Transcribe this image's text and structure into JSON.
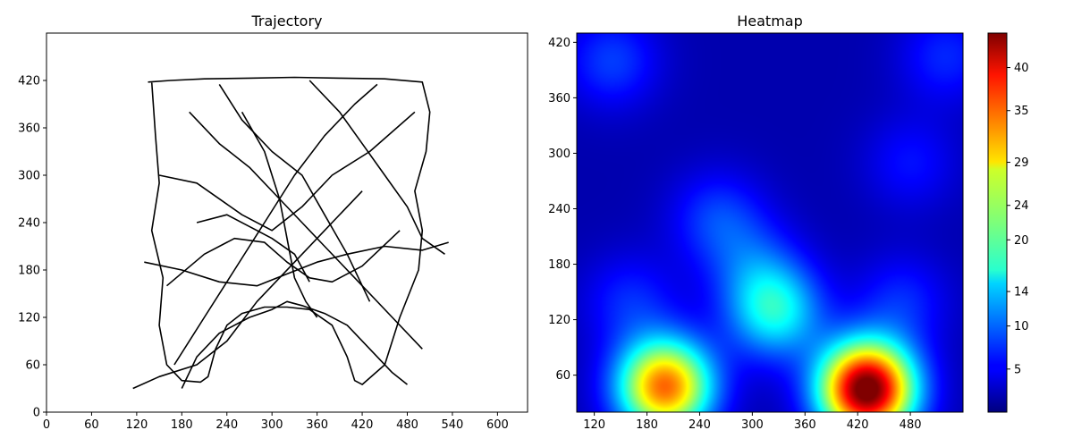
{
  "chart_data": [
    {
      "type": "line",
      "title": "Trajectory",
      "xlabel": "",
      "ylabel": "",
      "xlim": [
        0,
        640
      ],
      "ylim": [
        0,
        480
      ],
      "xticks": [
        "0",
        "60",
        "120",
        "180",
        "240",
        "300",
        "360",
        "420",
        "480",
        "540",
        "600"
      ],
      "yticks": [
        "0",
        "60",
        "120",
        "180",
        "240",
        "300",
        "360",
        "420"
      ],
      "grid": false,
      "line_color": "#000000",
      "series": [
        {
          "x": [
            135,
            165,
            210,
            270,
            330,
            390,
            450,
            500,
            510,
            505,
            490,
            500,
            495,
            470,
            450,
            420,
            410,
            400,
            380,
            350,
            320,
            290,
            260,
            240,
            225,
            215,
            205,
            180,
            160,
            150,
            155,
            140,
            150,
            145,
            140
          ],
          "y": [
            418,
            420,
            422,
            423,
            424,
            423,
            422,
            418,
            380,
            330,
            280,
            230,
            180,
            120,
            60,
            35,
            40,
            70,
            110,
            130,
            133,
            133,
            125,
            110,
            80,
            45,
            38,
            40,
            60,
            110,
            170,
            230,
            290,
            350,
            418
          ]
        },
        {
          "x": [
            150,
            200,
            260,
            300,
            340,
            380,
            430,
            490
          ],
          "y": [
            300,
            290,
            250,
            230,
            260,
            300,
            330,
            380
          ]
        },
        {
          "x": [
            160,
            210,
            250,
            290,
            320,
            350,
            380,
            420,
            470
          ],
          "y": [
            160,
            200,
            220,
            215,
            190,
            170,
            165,
            185,
            230
          ]
        },
        {
          "x": [
            190,
            230,
            270,
            310,
            340,
            370,
            410,
            460,
            500
          ],
          "y": [
            380,
            340,
            310,
            270,
            240,
            210,
            170,
            120,
            80
          ]
        },
        {
          "x": [
            170,
            210,
            250,
            290,
            330,
            370,
            410,
            440
          ],
          "y": [
            60,
            120,
            180,
            240,
            300,
            350,
            390,
            415
          ]
        },
        {
          "x": [
            230,
            260,
            300,
            340,
            370,
            400,
            430
          ],
          "y": [
            415,
            370,
            330,
            300,
            250,
            200,
            140
          ]
        },
        {
          "x": [
            130,
            180,
            230,
            280,
            320,
            360,
            400,
            450,
            500,
            535
          ],
          "y": [
            190,
            180,
            165,
            160,
            175,
            190,
            200,
            210,
            205,
            215
          ]
        },
        {
          "x": [
            180,
            200,
            230,
            270,
            300,
            320,
            340,
            370,
            400,
            430,
            460,
            480
          ],
          "y": [
            30,
            70,
            100,
            120,
            130,
            140,
            135,
            125,
            110,
            80,
            50,
            35
          ]
        },
        {
          "x": [
            260,
            290,
            310,
            320,
            330,
            345,
            360
          ],
          "y": [
            380,
            330,
            270,
            220,
            170,
            140,
            120
          ]
        },
        {
          "x": [
            115,
            150,
            200,
            240,
            280,
            330,
            380,
            420
          ],
          "y": [
            30,
            45,
            60,
            90,
            140,
            190,
            240,
            280
          ]
        },
        {
          "x": [
            350,
            390,
            420,
            450,
            480,
            500,
            530
          ],
          "y": [
            420,
            380,
            340,
            300,
            260,
            220,
            200
          ]
        },
        {
          "x": [
            200,
            240,
            270,
            300,
            330,
            350
          ],
          "y": [
            240,
            250,
            235,
            220,
            200,
            165
          ]
        }
      ]
    },
    {
      "type": "heatmap",
      "title": "Heatmap",
      "xlabel": "",
      "ylabel": "",
      "xlim": [
        100,
        540
      ],
      "ylim": [
        20,
        430
      ],
      "xticks": [
        "120",
        "180",
        "240",
        "300",
        "360",
        "420",
        "480"
      ],
      "yticks": [
        "60",
        "120",
        "180",
        "240",
        "300",
        "360",
        "420"
      ],
      "colormap": "jet",
      "vmin": 0,
      "vmax": 44,
      "colorbar_ticks": [
        "5",
        "10",
        "14",
        "20",
        "24",
        "29",
        "35",
        "40"
      ],
      "hotspots": [
        {
          "x": 430,
          "y": 45,
          "value": 44
        },
        {
          "x": 200,
          "y": 48,
          "value": 32
        },
        {
          "x": 325,
          "y": 130,
          "value": 15
        },
        {
          "x": 160,
          "y": 140,
          "value": 5
        },
        {
          "x": 470,
          "y": 140,
          "value": 5
        },
        {
          "x": 260,
          "y": 230,
          "value": 6
        },
        {
          "x": 140,
          "y": 400,
          "value": 6
        },
        {
          "x": 520,
          "y": 405,
          "value": 5
        },
        {
          "x": 480,
          "y": 290,
          "value": 4
        },
        {
          "x": 300,
          "y": 180,
          "value": 5
        }
      ],
      "background_value": 2
    }
  ]
}
